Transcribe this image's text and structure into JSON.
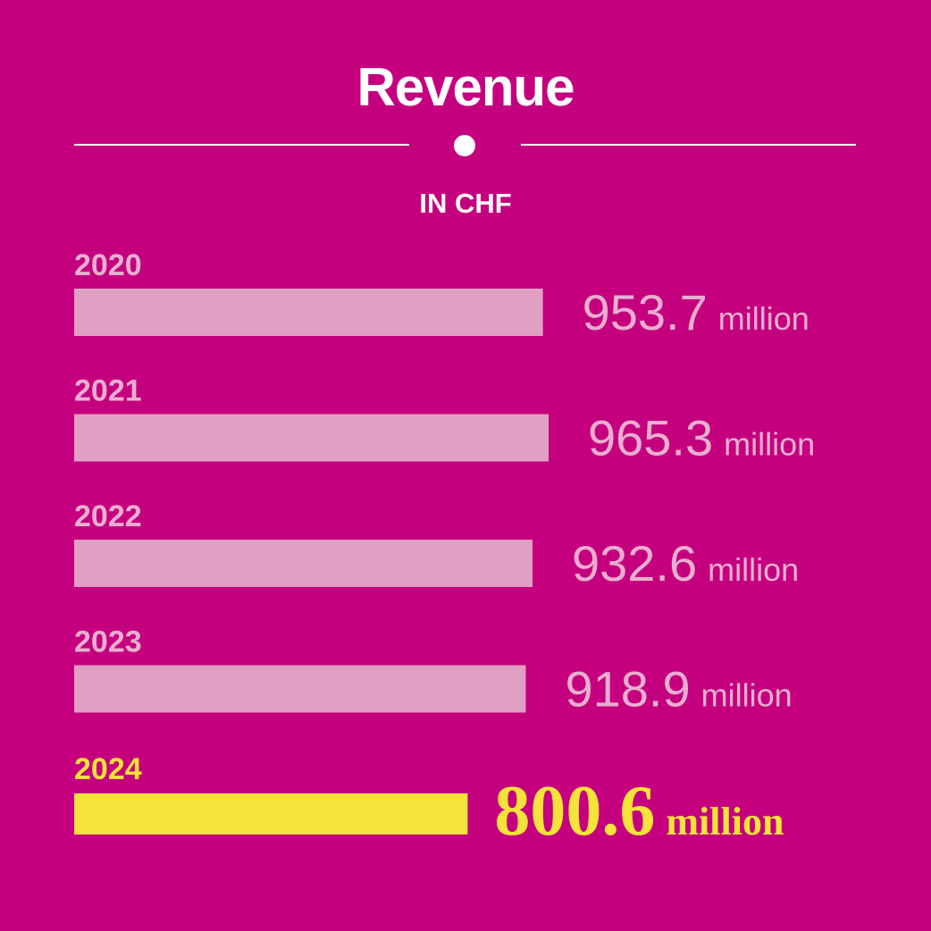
{
  "chart_data": {
    "type": "bar",
    "orientation": "horizontal",
    "title": "Revenue",
    "subtitle": "IN CHF",
    "categories": [
      "2020",
      "2021",
      "2022",
      "2023",
      "2024"
    ],
    "values": [
      953.7,
      965.3,
      932.6,
      918.9,
      800.6
    ],
    "value_labels": [
      "953.7",
      "965.3",
      "932.6",
      "918.9",
      "800.6"
    ],
    "unit_label": "million",
    "highlight_index": 4,
    "xlim": [
      0,
      1000
    ],
    "grid": false,
    "legend": "none"
  },
  "colors": {
    "background": "#C5007F",
    "bar": "#DFA0C3",
    "label": "#E8AFD0",
    "highlight": "#F5E23A",
    "title": "#FFFFFF"
  }
}
